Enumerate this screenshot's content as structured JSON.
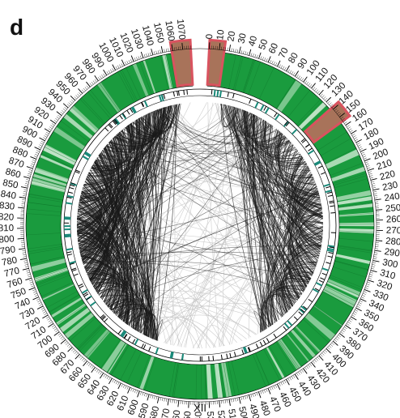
{
  "panel": {
    "letter": "d"
  },
  "chromosome": {
    "label": "XII",
    "length_kb": 1078,
    "tick_step_kb": 10
  },
  "colors": {
    "gene_track": "#1a9b3e",
    "gene_track_light": "#bfe3c6",
    "highlight": "#d9535f",
    "highlight_fill": "#a8735a",
    "link_dark": "#1a1a1a",
    "link_light": "#c8c8c8",
    "feature_teal": "#1a8a7a",
    "ring_edge": "#000000"
  },
  "highlighted_regions_kb": [
    {
      "start": 1059,
      "end": 1078
    },
    {
      "start": 0,
      "end": 15
    },
    {
      "start": 138,
      "end": 155
    }
  ],
  "gap_region_kb": {
    "start": 1064,
    "end": 1078
  }
}
